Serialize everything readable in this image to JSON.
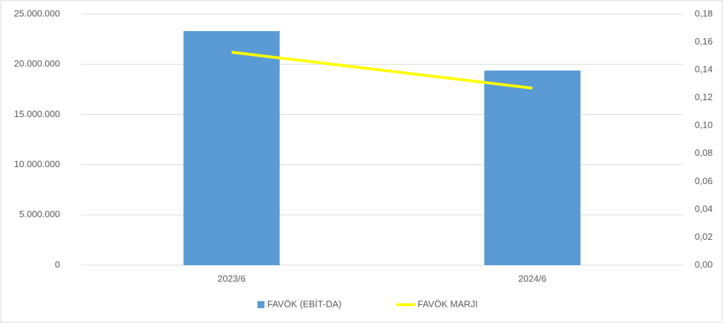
{
  "chart_data": {
    "type": "combo",
    "categories": [
      "2023/6",
      "2024/6"
    ],
    "series": [
      {
        "name": "FAVÖK (EBİT-DA)",
        "type": "bar",
        "color": "#5b9bd5",
        "values": [
          23310000,
          19380000
        ]
      },
      {
        "name": "FAVÖK MARJI",
        "type": "line",
        "axis": "y2",
        "color": "#ffff00",
        "values": [
          0.1527,
          0.1269
        ]
      }
    ],
    "ylim": [
      0,
      25000000
    ],
    "yticks": [
      0,
      {
        "value": 5000000,
        "label": "5.000.000"
      },
      {
        "value": 10000000,
        "label": "10.000.000"
      },
      {
        "value": 15000000,
        "label": "15.000.000"
      },
      {
        "value": 20000000,
        "label": "20.000.000"
      },
      {
        "value": 25000000,
        "label": "25.000.000"
      }
    ],
    "y2lim": [
      0,
      0.18
    ],
    "y2ticks": [
      {
        "value": 0,
        "label": "0,00"
      },
      {
        "value": 0.02,
        "label": "0,02"
      },
      {
        "value": 0.04,
        "label": "0,04"
      },
      {
        "value": 0.06,
        "label": "0,06"
      },
      {
        "value": 0.08,
        "label": "0,08"
      },
      {
        "value": 0.1,
        "label": "0,10"
      },
      {
        "value": 0.12,
        "label": "0,12"
      },
      {
        "value": 0.14,
        "label": "0,14"
      },
      {
        "value": 0.16,
        "label": "0,16"
      },
      {
        "value": 0.18,
        "label": "0,18"
      }
    ],
    "grid": true,
    "legend": "bottom"
  }
}
